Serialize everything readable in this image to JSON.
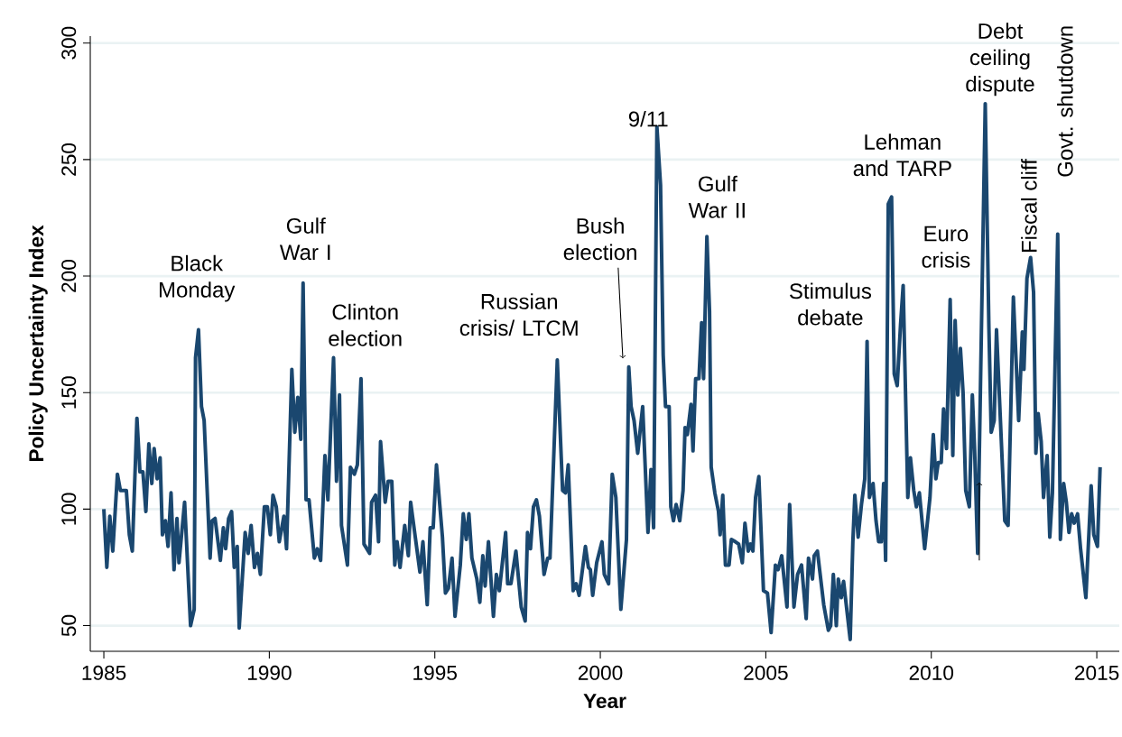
{
  "chart_data": {
    "type": "line",
    "xlabel": "Year",
    "ylabel": "Policy Uncertainty Index",
    "color": "#1a476f",
    "grid": "y",
    "xlim": [
      1984.59,
      2015.68
    ],
    "ylim": [
      39,
      303
    ],
    "xticks": [
      1985,
      1990,
      1995,
      2000,
      2005,
      2010,
      2015
    ],
    "yticks": [
      50,
      100,
      150,
      200,
      250,
      300
    ],
    "x": [
      1985.0,
      1985.09,
      1985.18,
      1985.27,
      1985.41,
      1985.5,
      1985.68,
      1985.77,
      1985.86,
      1986.0,
      1986.09,
      1986.18,
      1986.27,
      1986.36,
      1986.45,
      1986.52,
      1986.61,
      1986.7,
      1986.77,
      1986.86,
      1986.94,
      1987.03,
      1987.12,
      1987.21,
      1987.27,
      1987.44,
      1987.62,
      1987.73,
      1987.77,
      1987.86,
      1987.95,
      1988.03,
      1988.21,
      1988.27,
      1988.36,
      1988.52,
      1988.61,
      1988.68,
      1988.77,
      1988.86,
      1988.94,
      1989.03,
      1989.09,
      1989.27,
      1989.36,
      1989.45,
      1989.55,
      1989.64,
      1989.73,
      1989.85,
      1989.94,
      1990.03,
      1990.11,
      1990.21,
      1990.3,
      1990.44,
      1990.52,
      1990.68,
      1990.77,
      1990.86,
      1990.95,
      1991.02,
      1991.11,
      1991.2,
      1991.36,
      1991.45,
      1991.55,
      1991.68,
      1991.77,
      1991.94,
      1992.03,
      1992.12,
      1992.18,
      1992.36,
      1992.45,
      1992.57,
      1992.66,
      1992.77,
      1992.86,
      1993.03,
      1993.09,
      1993.21,
      1993.3,
      1993.36,
      1993.5,
      1993.59,
      1993.7,
      1993.79,
      1993.86,
      1993.95,
      1994.09,
      1994.2,
      1994.27,
      1994.41,
      1994.55,
      1994.64,
      1994.77,
      1994.86,
      1994.95,
      1995.05,
      1995.23,
      1995.32,
      1995.41,
      1995.52,
      1995.61,
      1995.77,
      1995.86,
      1995.95,
      1996.03,
      1996.12,
      1996.27,
      1996.36,
      1996.45,
      1996.52,
      1996.62,
      1996.77,
      1996.86,
      1996.95,
      1997.14,
      1997.2,
      1997.3,
      1997.45,
      1997.61,
      1997.73,
      1997.8,
      1997.89,
      1997.98,
      1998.07,
      1998.16,
      1998.3,
      1998.41,
      1998.48,
      1998.7,
      1998.86,
      1998.95,
      1999.03,
      1999.18,
      1999.27,
      1999.36,
      1999.55,
      1999.64,
      1999.7,
      1999.77,
      1999.89,
      2000.05,
      2000.12,
      2000.25,
      2000.36,
      2000.47,
      2000.62,
      2000.79,
      2000.86,
      2000.93,
      2001.02,
      2001.13,
      2001.28,
      2001.44,
      2001.53,
      2001.61,
      2001.71,
      2001.82,
      2001.9,
      2001.97,
      2002.08,
      2002.13,
      2002.21,
      2002.29,
      2002.4,
      2002.5,
      2002.56,
      2002.63,
      2002.74,
      2002.8,
      2002.88,
      2002.98,
      2003.06,
      2003.12,
      2003.22,
      2003.3,
      2003.35,
      2003.46,
      2003.57,
      2003.62,
      2003.7,
      2003.78,
      2003.89,
      2003.96,
      2004.08,
      2004.18,
      2004.29,
      2004.37,
      2004.47,
      2004.54,
      2004.61,
      2004.69,
      2004.79,
      2004.93,
      2005.05,
      2005.16,
      2005.29,
      2005.37,
      2005.48,
      2005.64,
      2005.72,
      2005.85,
      2005.96,
      2006.08,
      2006.22,
      2006.29,
      2006.41,
      2006.46,
      2006.56,
      2006.75,
      2006.89,
      2006.96,
      2007.04,
      2007.13,
      2007.19,
      2007.28,
      2007.35,
      2007.55,
      2007.63,
      2007.69,
      2007.79,
      2007.89,
      2007.99,
      2008.06,
      2008.13,
      2008.24,
      2008.33,
      2008.41,
      2008.49,
      2008.56,
      2008.62,
      2008.7,
      2008.8,
      2008.88,
      2008.97,
      2009.07,
      2009.15,
      2009.29,
      2009.37,
      2009.47,
      2009.55,
      2009.64,
      2009.8,
      2009.96,
      2010.06,
      2010.14,
      2010.21,
      2010.3,
      2010.37,
      2010.46,
      2010.57,
      2010.65,
      2010.72,
      2010.8,
      2010.88,
      2010.96,
      2011.04,
      2011.15,
      2011.24,
      2011.31,
      2011.4,
      2011.63,
      2011.74,
      2011.81,
      2011.9,
      2011.97,
      2012.22,
      2012.32,
      2012.48,
      2012.64,
      2012.75,
      2012.8,
      2012.89,
      2013.0,
      2013.09,
      2013.16,
      2013.23,
      2013.32,
      2013.39,
      2013.5,
      2013.58,
      2013.66,
      2013.82,
      2013.9,
      2014.0,
      2014.08,
      2014.16,
      2014.24,
      2014.32,
      2014.42,
      2014.51,
      2014.67,
      2014.83,
      2014.91,
      2015.02,
      2015.1
    ],
    "values": [
      100,
      75,
      97,
      82,
      115,
      108,
      108,
      89,
      82,
      139,
      116,
      116,
      99,
      128,
      111,
      126,
      113,
      122,
      89,
      95,
      84,
      107,
      74,
      96,
      77,
      103,
      50,
      57,
      165,
      177,
      144,
      138,
      79,
      95,
      96,
      78,
      92,
      83,
      96,
      99,
      75,
      84,
      49,
      90,
      81,
      93,
      75,
      81,
      72,
      101,
      101,
      89,
      106,
      101,
      86,
      97,
      83,
      160,
      133,
      148,
      130,
      197,
      104,
      104,
      79,
      83,
      78,
      123,
      104,
      165,
      112,
      149,
      93,
      76,
      118,
      115,
      119,
      156,
      85,
      81,
      103,
      106,
      86,
      129,
      103,
      112,
      112,
      76,
      86,
      75,
      93,
      80,
      103,
      88,
      73,
      86,
      59,
      92,
      92,
      119,
      88,
      64,
      66,
      79,
      54,
      76,
      98,
      87,
      98,
      79,
      70,
      60,
      80,
      67,
      86,
      54,
      72,
      65,
      90,
      68,
      68,
      82,
      58,
      52,
      90,
      83,
      101,
      104,
      97,
      72,
      79,
      79,
      164,
      108,
      107,
      119,
      65,
      68,
      63,
      84,
      75,
      74,
      63,
      77,
      86,
      72,
      68,
      115,
      105,
      57,
      87,
      161,
      144,
      138,
      124,
      144,
      90,
      117,
      92,
      264,
      239,
      166,
      144,
      144,
      101,
      95,
      102,
      95,
      108,
      135,
      132,
      145,
      125,
      156,
      156,
      180,
      156,
      217,
      185,
      118,
      107,
      99,
      89,
      106,
      76,
      76,
      87,
      86,
      85,
      77,
      94,
      82,
      85,
      82,
      105,
      114,
      65,
      64,
      47,
      76,
      74,
      80,
      58,
      102,
      58,
      72,
      76,
      53,
      79,
      70,
      80,
      82,
      59,
      48,
      50,
      72,
      50,
      70,
      62,
      69,
      44,
      86,
      106,
      88,
      102,
      113,
      172,
      105,
      111,
      95,
      86,
      86,
      111,
      78,
      231,
      234,
      158,
      153,
      179,
      196,
      105,
      122,
      108,
      101,
      107,
      83,
      105,
      132,
      113,
      120,
      120,
      143,
      126,
      190,
      123,
      181,
      149,
      169,
      150,
      108,
      101,
      149,
      125,
      81,
      274,
      178,
      133,
      138,
      177,
      95,
      93,
      191,
      138,
      176,
      160,
      199,
      208,
      193,
      124,
      141,
      129,
      105,
      123,
      88,
      107,
      218,
      87,
      111,
      103,
      90,
      98,
      94,
      98,
      83,
      62,
      110,
      89,
      84,
      118
    ],
    "annotations": [
      "Black Monday",
      "Gulf War I",
      "Clinton election",
      "Russian crisis/ LTCM",
      "Bush election",
      "9/11",
      "Gulf War II",
      "Stimulus debate",
      "Lehman and TARP",
      "Euro crisis",
      "Debt ceiling dispute",
      "Fiscal cliff",
      "Govt. shutdown"
    ]
  }
}
